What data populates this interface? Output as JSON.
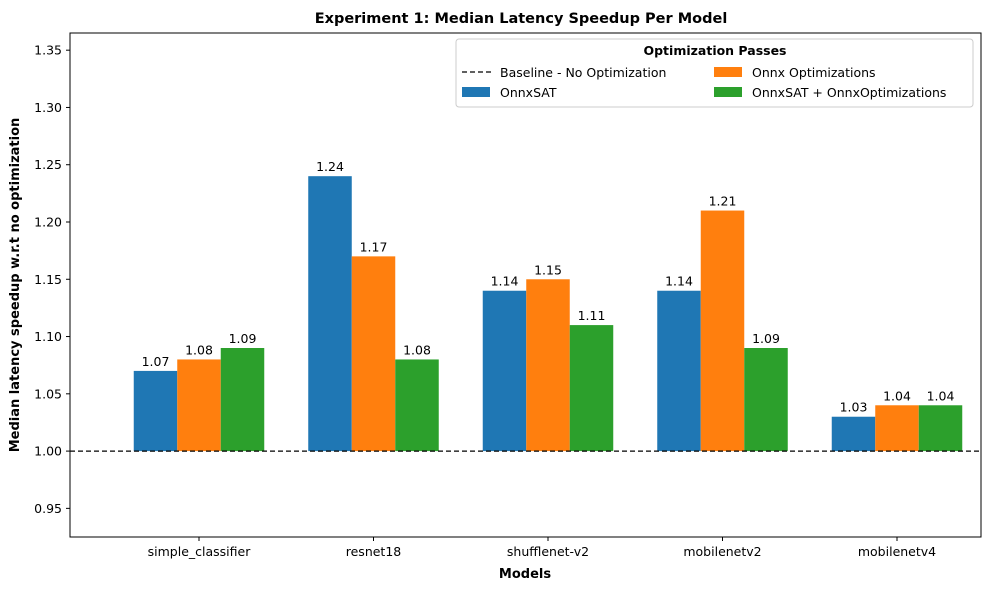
{
  "chart_data": {
    "type": "bar",
    "title": "Experiment 1: Median Latency Speedup Per Model",
    "xlabel": "Models",
    "ylabel": "Median latency speedup w.r.t no optimization",
    "categories": [
      "simple_classifier",
      "resnet18",
      "shufflenet-v2",
      "mobilenetv2",
      "mobilenetv4"
    ],
    "series": [
      {
        "name": "OnnxSAT",
        "color": "#1f77b4",
        "values": [
          1.07,
          1.24,
          1.14,
          1.14,
          1.03
        ],
        "labels": [
          "1.07",
          "1.24",
          "1.14",
          "1.14",
          "1.03"
        ]
      },
      {
        "name": "Onnx Optimizations",
        "color": "#ff7f0e",
        "values": [
          1.08,
          1.17,
          1.15,
          1.21,
          1.04
        ],
        "labels": [
          "1.08",
          "1.17",
          "1.15",
          "1.21",
          "1.04"
        ]
      },
      {
        "name": "OnnxSAT + OnnxOptimizations",
        "color": "#2ca02c",
        "values": [
          1.09,
          1.08,
          1.11,
          1.09,
          1.04
        ],
        "labels": [
          "1.09",
          "1.08",
          "1.11",
          "1.09",
          "1.04"
        ]
      }
    ],
    "baseline": {
      "name": "Baseline - No Optimization",
      "value": 1.0,
      "style": "dashed",
      "color": "#000000"
    },
    "ylim": [
      0.925,
      1.365
    ],
    "yticks": [
      "0.95",
      "1.00",
      "1.05",
      "1.10",
      "1.15",
      "1.20",
      "1.25",
      "1.30",
      "1.35"
    ],
    "grid": false,
    "legend": {
      "title": "Optimization Passes",
      "placement": "top-right",
      "columns": 2
    }
  }
}
